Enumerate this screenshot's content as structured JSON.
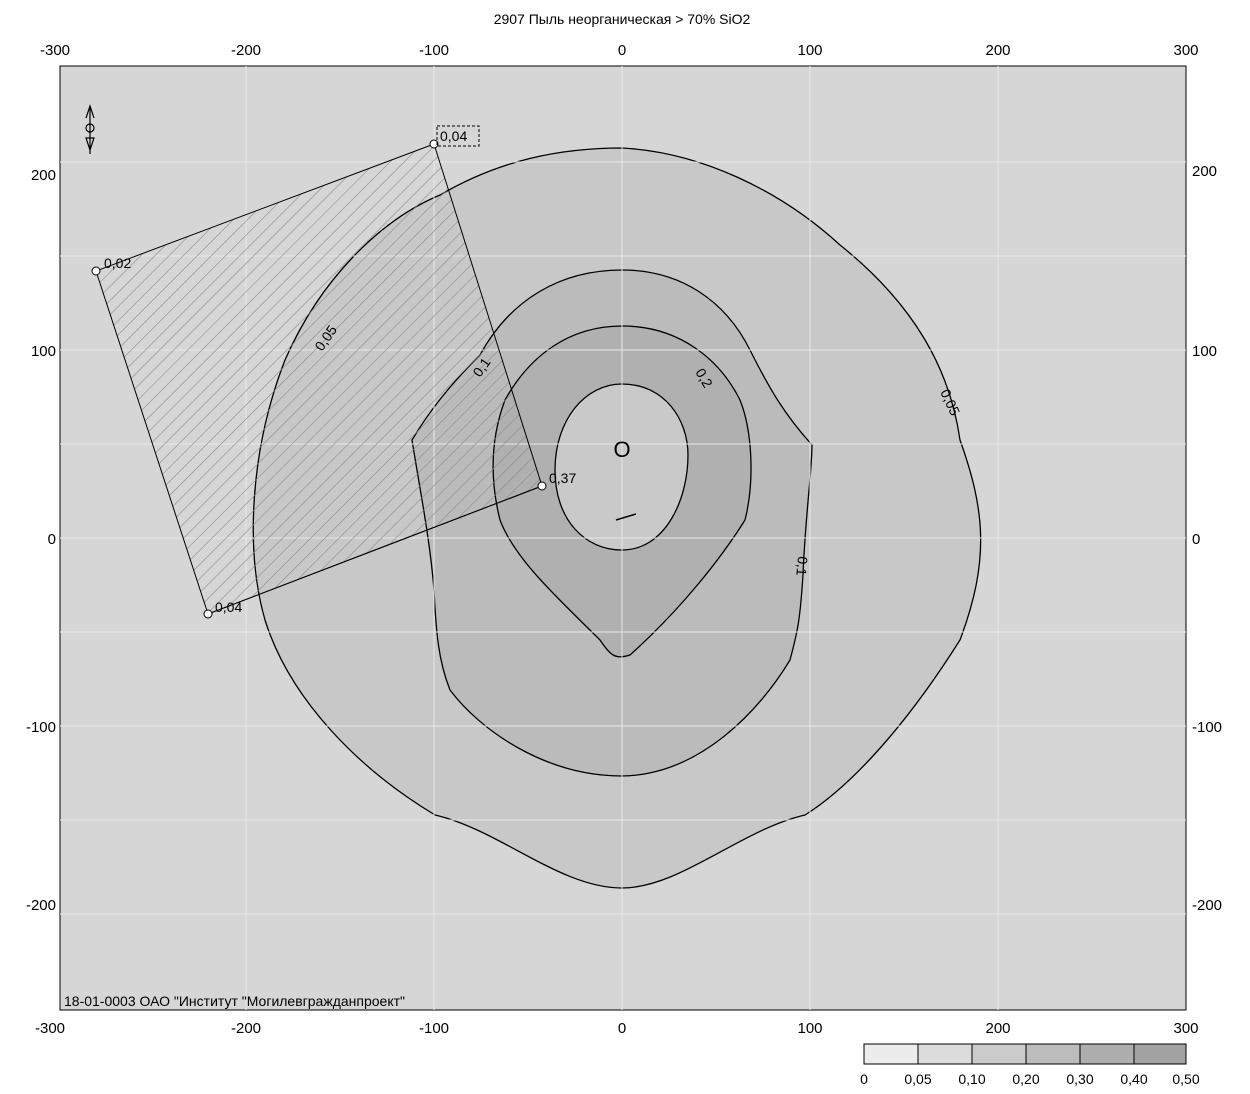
{
  "title": "2907 Пыль неорганическая > 70% SiO2",
  "footer": "18-01-0003 ОАО \"Институт \"Могилевгражданпроект\"",
  "axes": {
    "x_ticks": [
      "-300",
      "-200",
      "-100",
      "0",
      "100",
      "200",
      "300"
    ],
    "y_ticks": [
      "200",
      "100",
      "0",
      "-100",
      "-200"
    ]
  },
  "isolines": [
    "0,05",
    "0,1",
    "0,2",
    "0,05",
    "0,1"
  ],
  "points": [
    "0,04",
    "0,02",
    "0,04",
    "0,37"
  ],
  "source_marker": "O",
  "legend": {
    "labels": [
      "0",
      "0,05",
      "0,10",
      "0,20",
      "0,30",
      "0,40",
      "0,50"
    ],
    "colors": [
      "#ececec",
      "#dcdcdc",
      "#cbcbcb",
      "#bcbcbc",
      "#aeaeae",
      "#a3a3a3"
    ]
  },
  "colors": {
    "background": "#d6d6d6",
    "zone_005": "#c8c8c8",
    "zone_01": "#bbbbbb",
    "zone_02": "#b0b0b0",
    "zone_03": "#c9c9c9",
    "grid": "#e8e8e8",
    "contour": "#000000"
  }
}
